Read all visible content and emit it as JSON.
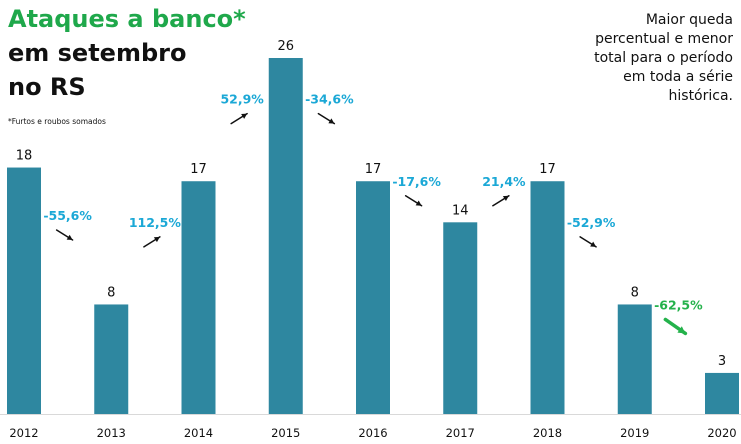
{
  "title": {
    "line1": "Ataques a banco*",
    "line2": "em setembro",
    "line3": "no RS"
  },
  "footnote": "*Furtos e roubos somados",
  "side_note": "Maior queda percentual e menor total para o período em toda a série histórica.",
  "colors": {
    "bar": "#2e87a0",
    "change_label": "#1ba8d6",
    "highlight": "#24b24b",
    "arrow": "#111111",
    "title_accent": "#1fa84b"
  },
  "chart_data": {
    "type": "bar",
    "categories": [
      "2012",
      "2013",
      "2014",
      "2015",
      "2016",
      "2017",
      "2018",
      "2019",
      "2020"
    ],
    "values": [
      18,
      8,
      17,
      26,
      17,
      14,
      17,
      8,
      3
    ],
    "changes": [
      "-55,6%",
      "112,5%",
      "52,9%",
      "-34,6%",
      "-17,6%",
      "21,4%",
      "-52,9%",
      "-62,5%"
    ],
    "highlight_change_index": 7,
    "ylim": [
      0,
      26
    ],
    "grid": false,
    "legend": "none"
  }
}
